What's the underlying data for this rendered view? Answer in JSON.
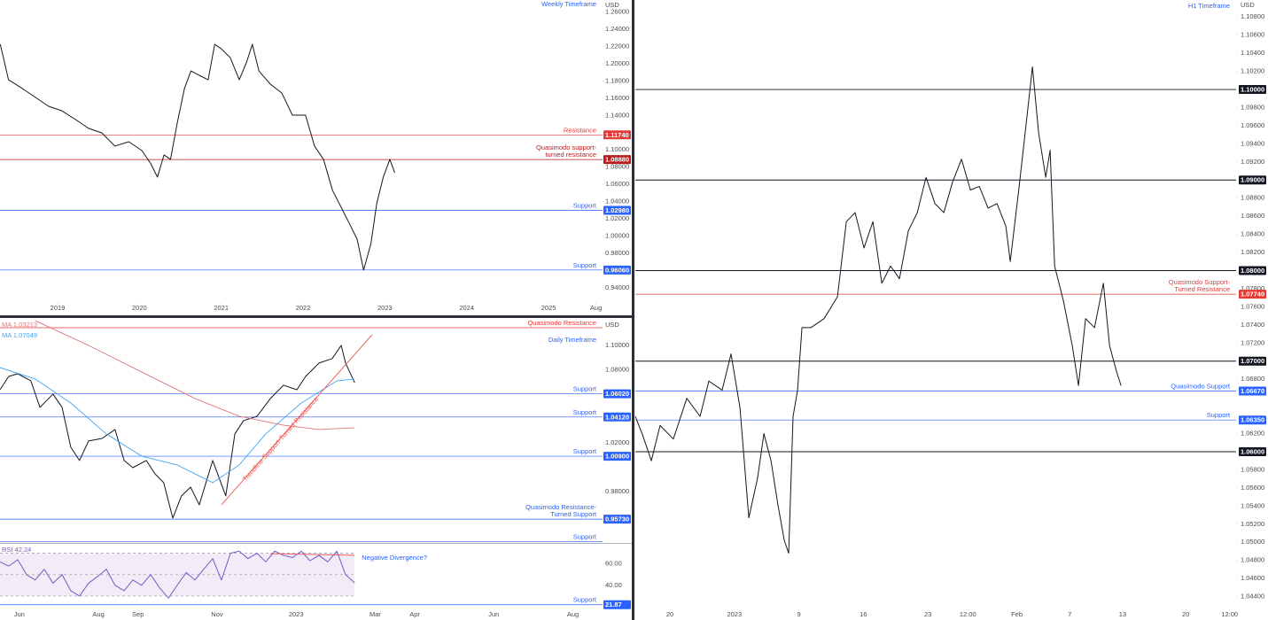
{
  "chart_data": [
    {
      "type": "line",
      "timeframe": "Weekly Timeframe",
      "currency": "USD",
      "xlim": [
        2018.296,
        2025.66
      ],
      "ylim": [
        0.909,
        1.274
      ],
      "xticks": [
        2019,
        2020,
        2021,
        2022,
        2023,
        2024,
        2025,
        {
          "value": 2025.58,
          "label": "Aug"
        }
      ],
      "yticks": [
        {
          "value": 1.26,
          "label": "1.26000"
        },
        {
          "value": 1.24,
          "label": "1.24000"
        },
        {
          "value": 1.22,
          "label": "1.22000"
        },
        {
          "value": 1.2,
          "label": "1.20000"
        },
        {
          "value": 1.18,
          "label": "1.18000"
        },
        {
          "value": 1.16,
          "label": "1.16000"
        },
        {
          "value": 1.14,
          "label": "1.14000"
        },
        {
          "value": 1.1,
          "label": "1.10000"
        },
        {
          "value": 1.08,
          "label": "1.08000"
        },
        {
          "value": 1.06,
          "label": "1.06000"
        },
        {
          "value": 1.04,
          "label": "1.04000"
        },
        {
          "value": 1.02,
          "label": "1.02000"
        },
        {
          "value": 1.0,
          "label": "1.00000"
        },
        {
          "value": 0.98,
          "label": "0.98000"
        },
        {
          "value": 0.94,
          "label": "0.94000"
        }
      ],
      "levels": [
        {
          "value": 1.1174,
          "label": "1.11740",
          "color": "#e53935",
          "text": [
            "Resistance"
          ]
        },
        {
          "value": 1.0888,
          "label": "1.08880",
          "color": "#b71c1c",
          "text": [
            "Quasimodo support-",
            "turned resistance"
          ]
        },
        {
          "value": 1.0298,
          "label": "1.02980",
          "color": "#2962ff",
          "text": [
            "Support"
          ]
        },
        {
          "value": 0.9606,
          "label": "0.96060",
          "color": "#2962ff",
          "text": [
            "Support"
          ]
        }
      ],
      "series": [
        {
          "color": "#131722",
          "x": [
            2018.3,
            2018.4,
            2018.57,
            2018.73,
            2018.89,
            2019.05,
            2019.22,
            2019.38,
            2019.54,
            2019.7,
            2019.87,
            2020.03,
            2020.14,
            2020.22,
            2020.3,
            2020.38,
            2020.46,
            2020.55,
            2020.63,
            2020.73,
            2020.84,
            2020.92,
            2021.0,
            2021.11,
            2021.22,
            2021.31,
            2021.38,
            2021.46,
            2021.6,
            2021.74,
            2021.87,
            2022.03,
            2022.14,
            2022.25,
            2022.36,
            2022.47,
            2022.58,
            2022.66,
            2022.74,
            2022.83,
            2022.9,
            2022.98,
            2023.06,
            2023.12
          ],
          "values": [
            1.2225,
            1.1814,
            1.1712,
            1.1609,
            1.1506,
            1.1455,
            1.1352,
            1.1249,
            1.1198,
            1.1044,
            1.1095,
            1.0992,
            1.0838,
            1.0684,
            1.0941,
            1.089,
            1.1301,
            1.1712,
            1.1917,
            1.1866,
            1.1814,
            1.2225,
            1.2174,
            1.2071,
            1.1814,
            1.202,
            1.2225,
            1.1917,
            1.1763,
            1.166,
            1.1403,
            1.1403,
            1.1044,
            1.089,
            1.053,
            1.0325,
            1.0119,
            0.9965,
            0.9605,
            0.9914,
            1.0376,
            1.0684,
            1.089,
            1.0736
          ]
        }
      ]
    },
    {
      "type": "line",
      "timeframe": "Daily Timeframe",
      "currency": "USD",
      "xlim": [
        5.51,
        20.75
      ],
      "ylim": [
        0.9385,
        1.1218
      ],
      "yticks": [
        {
          "value": 1.1,
          "label": "1.10000"
        },
        {
          "value": 1.08,
          "label": "1.08000"
        },
        {
          "value": 1.02,
          "label": "1.02000"
        },
        {
          "value": 0.98,
          "label": "0.98000"
        }
      ],
      "levels": [
        {
          "value": 1.1145,
          "color": "#e53935",
          "text": [
            "Quasimodo Resistance"
          ]
        },
        {
          "value": 1.0602,
          "label": "1.06020",
          "color": "#2962ff",
          "text": [
            "Support"
          ]
        },
        {
          "value": 1.0412,
          "label": "1.04120",
          "color": "#2962ff",
          "text": [
            "Support"
          ]
        },
        {
          "value": 1.009,
          "label": "1.00900",
          "color": "#2962ff",
          "text": [
            "Support"
          ]
        },
        {
          "value": 0.9573,
          "label": "0.95730",
          "color": "#2962ff",
          "text": [
            "Quasimodo Resistance-",
            "Turned Support"
          ]
        },
        {
          "value": 0.939,
          "color": "#2962ff",
          "text": [
            "Support"
          ]
        }
      ],
      "series": [
        {
          "color": "#131722",
          "x": [
            5.51,
            5.73,
            5.96,
            6.29,
            6.52,
            6.85,
            7.08,
            7.3,
            7.52,
            7.75,
            8.09,
            8.42,
            8.65,
            8.87,
            9.21,
            9.43,
            9.65,
            9.88,
            10.1,
            10.33,
            10.55,
            10.89,
            11.22,
            11.45,
            11.67,
            12.01,
            12.35,
            12.68,
            13.02,
            13.24,
            13.58,
            13.91,
            14.14,
            14.25,
            14.48
          ],
          "values": [
            1.0636,
            1.0745,
            1.0767,
            1.0709,
            1.0491,
            1.06,
            1.0491,
            1.0164,
            1.0055,
            1.0215,
            1.0236,
            1.0309,
            1.0055,
            0.9996,
            1.0055,
            0.9945,
            0.9873,
            0.9582,
            0.9764,
            0.9836,
            0.9691,
            1.0055,
            0.9764,
            1.0273,
            1.0382,
            1.0418,
            1.0564,
            1.0673,
            1.0636,
            1.0745,
            1.0855,
            1.0891,
            1.1,
            1.0855,
            1.0695
          ]
        },
        {
          "name": "MA 1.03213",
          "color": "#e57373",
          "x": [
            6.4,
            7.75,
            9.09,
            10.44,
            11.56,
            12.68,
            13.58,
            14.48
          ],
          "values": [
            1.1204,
            1.1,
            1.0782,
            1.0564,
            1.0418,
            1.0345,
            1.0309,
            1.0324
          ]
        },
        {
          "name": "MA 1.07049",
          "color": "#42a5f5",
          "x": [
            5.51,
            6.4,
            7.3,
            8.2,
            9.09,
            9.99,
            10.89,
            11.56,
            12.23,
            13.13,
            14.03,
            14.48
          ],
          "values": [
            1.0818,
            1.0724,
            1.0527,
            1.0273,
            1.0091,
            1.0018,
            0.9873,
            1.0018,
            1.0273,
            1.0527,
            1.0709,
            1.0724
          ]
        },
        {
          "label": "Trendline Support-Turned Resistance",
          "color": "#ef5350",
          "x": [
            11.11,
            14.92
          ],
          "values": [
            0.9691,
            1.1087
          ]
        }
      ]
    },
    {
      "type": "line",
      "xlim": [
        5.51,
        20.75
      ],
      "ylim": [
        20,
        78
      ],
      "xticks": [
        {
          "value": 6,
          "label": "Jun"
        },
        {
          "value": 8,
          "label": "Aug"
        },
        {
          "value": 9,
          "label": "Sep"
        },
        {
          "value": 11,
          "label": "Nov"
        },
        {
          "value": 13,
          "label": "2023"
        },
        {
          "value": 15,
          "label": "Mar"
        },
        {
          "value": 16,
          "label": "Apr"
        },
        {
          "value": 18,
          "label": "Jun"
        },
        {
          "value": 20,
          "label": "Aug"
        }
      ],
      "yticks": [
        {
          "value": 60,
          "label": "60.00"
        },
        {
          "value": 40,
          "label": "40.00"
        }
      ],
      "bands": [
        70,
        50,
        30
      ],
      "levels": [
        {
          "value": 21.87,
          "label": "21.87",
          "color": "#2962ff",
          "text": [
            "Support"
          ]
        }
      ],
      "series": [
        {
          "name": "RSI 42.24",
          "color": "#7e57c2",
          "x": [
            5.51,
            5.73,
            5.96,
            6.18,
            6.4,
            6.63,
            6.85,
            7.08,
            7.3,
            7.52,
            7.75,
            7.97,
            8.2,
            8.42,
            8.65,
            8.87,
            9.09,
            9.32,
            9.54,
            9.77,
            9.99,
            10.22,
            10.44,
            10.66,
            10.89,
            11.11,
            11.34,
            11.56,
            11.78,
            12.01,
            12.23,
            12.46,
            12.68,
            12.91,
            13.13,
            13.35,
            13.58,
            13.8,
            14.03,
            14.25,
            14.48
          ],
          "values": [
            62,
            58,
            64,
            50,
            45,
            55,
            42,
            50,
            35,
            30,
            42,
            48,
            55,
            40,
            35,
            45,
            40,
            50,
            38,
            28,
            40,
            52,
            45,
            55,
            65,
            45,
            70,
            72,
            65,
            70,
            62,
            72,
            68,
            66,
            72,
            63,
            68,
            62,
            72,
            50,
            42.24
          ]
        },
        {
          "label": "Negative Divergence?",
          "color": "#ef5350",
          "x": [
            12.35,
            14.48
          ],
          "values": [
            69.7,
            68.1
          ]
        }
      ]
    },
    {
      "type": "line",
      "timeframe": "H1 Timeframe",
      "currency": "USD",
      "xlim": [
        -2.68,
        43.9
      ],
      "ylim": [
        1.04259,
        1.10988
      ],
      "xticks": [
        {
          "value": 0,
          "label": "20"
        },
        {
          "value": 5,
          "label": "2023"
        },
        {
          "value": 10,
          "label": "9"
        },
        {
          "value": 15,
          "label": "16"
        },
        {
          "value": 20,
          "label": "23"
        },
        {
          "value": 23.1,
          "label": "12:00"
        },
        {
          "value": 26.9,
          "label": "Feb"
        },
        {
          "value": 31,
          "label": "7"
        },
        {
          "value": 35.1,
          "label": "13"
        },
        {
          "value": 40,
          "label": "20"
        },
        {
          "value": 43.4,
          "label": "12:00"
        }
      ],
      "yticks": [
        {
          "value": 1.108,
          "label": "1.10800"
        },
        {
          "value": 1.106,
          "label": "1.10600"
        },
        {
          "value": 1.104,
          "label": "1.10400"
        },
        {
          "value": 1.102,
          "label": "1.10200"
        },
        {
          "value": 1.098,
          "label": "1.09800"
        },
        {
          "value": 1.096,
          "label": "1.09600"
        },
        {
          "value": 1.094,
          "label": "1.09400"
        },
        {
          "value": 1.092,
          "label": "1.09200"
        },
        {
          "value": 1.088,
          "label": "1.08800"
        },
        {
          "value": 1.086,
          "label": "1.08600"
        },
        {
          "value": 1.084,
          "label": "1.08400"
        },
        {
          "value": 1.082,
          "label": "1.08200"
        },
        {
          "value": 1.078,
          "label": "1.07800"
        },
        {
          "value": 1.076,
          "label": "1.07600"
        },
        {
          "value": 1.074,
          "label": "1.07400"
        },
        {
          "value": 1.072,
          "label": "1.07200"
        },
        {
          "value": 1.068,
          "label": "1.06800"
        },
        {
          "value": 1.062,
          "label": "1.06200"
        },
        {
          "value": 1.058,
          "label": "1.05800"
        },
        {
          "value": 1.056,
          "label": "1.05600"
        },
        {
          "value": 1.054,
          "label": "1.05400"
        },
        {
          "value": 1.052,
          "label": "1.05200"
        },
        {
          "value": 1.05,
          "label": "1.05000"
        },
        {
          "value": 1.048,
          "label": "1.04800"
        },
        {
          "value": 1.046,
          "label": "1.04600"
        },
        {
          "value": 1.044,
          "label": "1.04400"
        }
      ],
      "levels": [
        {
          "value": 1.1,
          "label": "1.10000",
          "color": "#131722"
        },
        {
          "value": 1.09,
          "label": "1.09000",
          "color": "#131722"
        },
        {
          "value": 1.08,
          "label": "1.08000",
          "color": "#131722"
        },
        {
          "value": 1.0774,
          "label": "1.07740",
          "color": "#e53935",
          "text": [
            "Quasimodo Support-",
            "Turned Resistance"
          ]
        },
        {
          "value": 1.07,
          "label": "1.07000",
          "color": "#131722"
        },
        {
          "value": 1.0667,
          "label": "1.06670",
          "color": "#2962ff",
          "text": [
            "Quasimodo Support"
          ]
        },
        {
          "value": 1.0635,
          "label": "1.06350",
          "color": "#2962ff",
          "text": [
            "Support"
          ]
        },
        {
          "value": 1.06,
          "label": "1.06000",
          "color": "#131722"
        }
      ],
      "series": [
        {
          "color": "#131722",
          "x": [
            -2.68,
            -2.13,
            -1.44,
            -0.76,
            0.27,
            1.31,
            2.34,
            3.02,
            4.05,
            4.74,
            5.43,
            6.12,
            6.8,
            7.29,
            7.84,
            8.38,
            8.87,
            9.21,
            9.55,
            9.9,
            10.24,
            10.93,
            11.96,
            12.99,
            13.68,
            14.36,
            15.05,
            15.74,
            16.43,
            17.11,
            17.8,
            18.49,
            19.18,
            19.86,
            20.55,
            21.24,
            21.92,
            22.61,
            23.3,
            23.99,
            24.67,
            25.36,
            26.05,
            26.39,
            27.08,
            27.77,
            28.11,
            28.59,
            29.14,
            29.48,
            29.83,
            30.52,
            31.2,
            31.68,
            32.23,
            32.92,
            33.61,
            34.09,
            34.64,
            34.98
          ],
          "values": [
            1.0639,
            1.0619,
            1.059,
            1.0629,
            1.0614,
            1.0659,
            1.0639,
            1.0678,
            1.0668,
            1.0708,
            1.0649,
            1.0527,
            1.0571,
            1.062,
            1.059,
            1.0541,
            1.0502,
            1.0488,
            1.0639,
            1.0668,
            1.0737,
            1.0737,
            1.0747,
            1.0771,
            1.0854,
            1.0864,
            1.0825,
            1.0854,
            1.0786,
            1.0805,
            1.0791,
            1.0844,
            1.0864,
            1.0903,
            1.0874,
            1.0864,
            1.0898,
            1.0923,
            1.0889,
            1.0893,
            1.0869,
            1.0874,
            1.0849,
            1.081,
            1.0893,
            1.0981,
            1.1025,
            1.0952,
            1.0903,
            1.0933,
            1.0805,
            1.0766,
            1.0717,
            1.0673,
            1.0747,
            1.0737,
            1.0786,
            1.0717,
            1.0688,
            1.0673
          ]
        }
      ]
    }
  ]
}
